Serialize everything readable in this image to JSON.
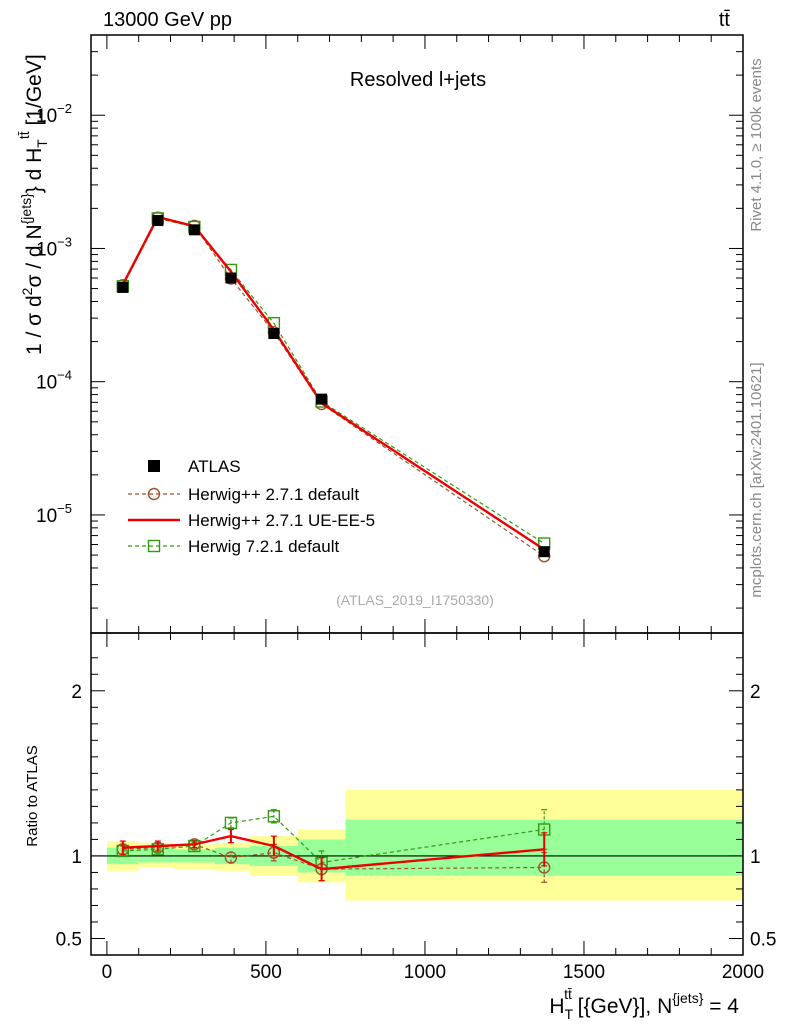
{
  "header": {
    "beam": "13000 GeV pp",
    "process": "tt̄"
  },
  "side_labels": {
    "rivet": "Rivet 4.1.0, ≥ 100k events",
    "mcplots": "mcplots.cern.ch [arXiv:2401.10621]"
  },
  "chart_data": {
    "type": "line",
    "title": "Resolved l+jets",
    "analysis_id": "(ATLAS_2019_I1750330)",
    "xlabel": "H_T^{tt̄} [{GeV}], N^{jets} = 4",
    "xlabel_parts": {
      "h": "H",
      "t_sub": "T",
      "ttbar_sup": "tt̄",
      "unit": " [{GeV}], N",
      "jets_sup": "{jets}",
      "tail": " = 4"
    },
    "ylabel": "1 / σ d²σ / d N^{jets} } d H_T^{tt̄} [1/GeV]",
    "ylabel_parts": {
      "a": "1 / σ d",
      "b": "2",
      "c": "σ  /  d N",
      "d": "{jets}",
      "e": "} d H",
      "f": "T",
      "g": "tt̄",
      "h": " [1/GeV]"
    },
    "ratio_ylabel": "Ratio to ATLAS",
    "xlim": [
      -50,
      2000
    ],
    "ylim": [
      1.3e-06,
      0.04
    ],
    "ratio_ylim": [
      0.4,
      2.35
    ],
    "x_ticks": [
      0,
      500,
      1000,
      1500,
      2000
    ],
    "x_tick_labels": [
      "0",
      "500",
      "1000",
      "1500",
      "2000"
    ],
    "y_tick_labels": [
      {
        "base": "10",
        "exp": "−5",
        "value": 1e-05
      },
      {
        "base": "10",
        "exp": "−4",
        "value": 0.0001
      },
      {
        "base": "10",
        "exp": "−3",
        "value": 0.001
      },
      {
        "base": "10",
        "exp": "−2",
        "value": 0.01
      }
    ],
    "ratio_ticks": [
      0.5,
      1,
      2
    ],
    "ratio_tick_labels": [
      "0.5",
      "1",
      "2"
    ],
    "bins": [
      [
        0,
        100
      ],
      [
        100,
        210
      ],
      [
        210,
        340
      ],
      [
        340,
        450
      ],
      [
        450,
        600
      ],
      [
        600,
        750
      ],
      [
        750,
        2000
      ]
    ],
    "x": [
      50,
      160,
      275,
      390,
      525,
      675,
      1375
    ],
    "band_inner": [
      [
        0.95,
        1.05
      ],
      [
        0.96,
        1.05
      ],
      [
        0.96,
        1.04
      ],
      [
        0.95,
        1.05
      ],
      [
        0.94,
        1.06
      ],
      [
        0.9,
        1.1
      ],
      [
        0.88,
        1.22
      ]
    ],
    "band_outer": [
      [
        0.91,
        1.09
      ],
      [
        0.93,
        1.08
      ],
      [
        0.92,
        1.07
      ],
      [
        0.91,
        1.08
      ],
      [
        0.88,
        1.12
      ],
      [
        0.84,
        1.16
      ],
      [
        0.73,
        1.4
      ]
    ],
    "series": [
      {
        "name": "ATLAS",
        "color": "#000000",
        "style": "square-filled",
        "values": [
          0.00051,
          0.00162,
          0.00138,
          0.0006,
          0.00023,
          7.4e-05,
          5.3e-06
        ],
        "ratio": [
          1,
          1,
          1,
          1,
          1,
          1,
          1
        ]
      },
      {
        "name": "Herwig++ 2.7.1 default",
        "color": "#a0522d",
        "style": "circle-open-dashed",
        "values": [
          0.00053,
          0.0017,
          0.00148,
          0.000595,
          0.000235,
          6.8e-05,
          4.9e-06
        ],
        "ratio": [
          1.04,
          1.05,
          1.07,
          0.99,
          1.02,
          0.92,
          0.93
        ],
        "ratio_err": [
          0.03,
          0.03,
          0.02,
          0.03,
          0.05,
          0.07,
          0.09
        ]
      },
      {
        "name": "Herwig++ 2.7.1 UE-EE-5",
        "color": "#ee0000",
        "style": "line-solid",
        "values": [
          0.000535,
          0.00172,
          0.00147,
          0.00067,
          0.000245,
          6.9e-05,
          5.5e-06
        ],
        "ratio": [
          1.05,
          1.06,
          1.07,
          1.12,
          1.06,
          0.92,
          1.04
        ],
        "ratio_err": [
          0.04,
          0.03,
          0.02,
          0.04,
          0.06,
          0.07,
          0.1
        ]
      },
      {
        "name": "Herwig 7.2.1 default",
        "color": "#339911",
        "style": "square-open-dashed",
        "values": [
          0.00052,
          0.00168,
          0.00145,
          0.00069,
          0.000275,
          7.1e-05,
          6.1e-06
        ],
        "ratio": [
          1.03,
          1.04,
          1.06,
          1.2,
          1.24,
          0.96,
          1.16
        ],
        "ratio_err": [
          0.03,
          0.02,
          0.02,
          0.03,
          0.04,
          0.07,
          0.12
        ]
      }
    ]
  }
}
